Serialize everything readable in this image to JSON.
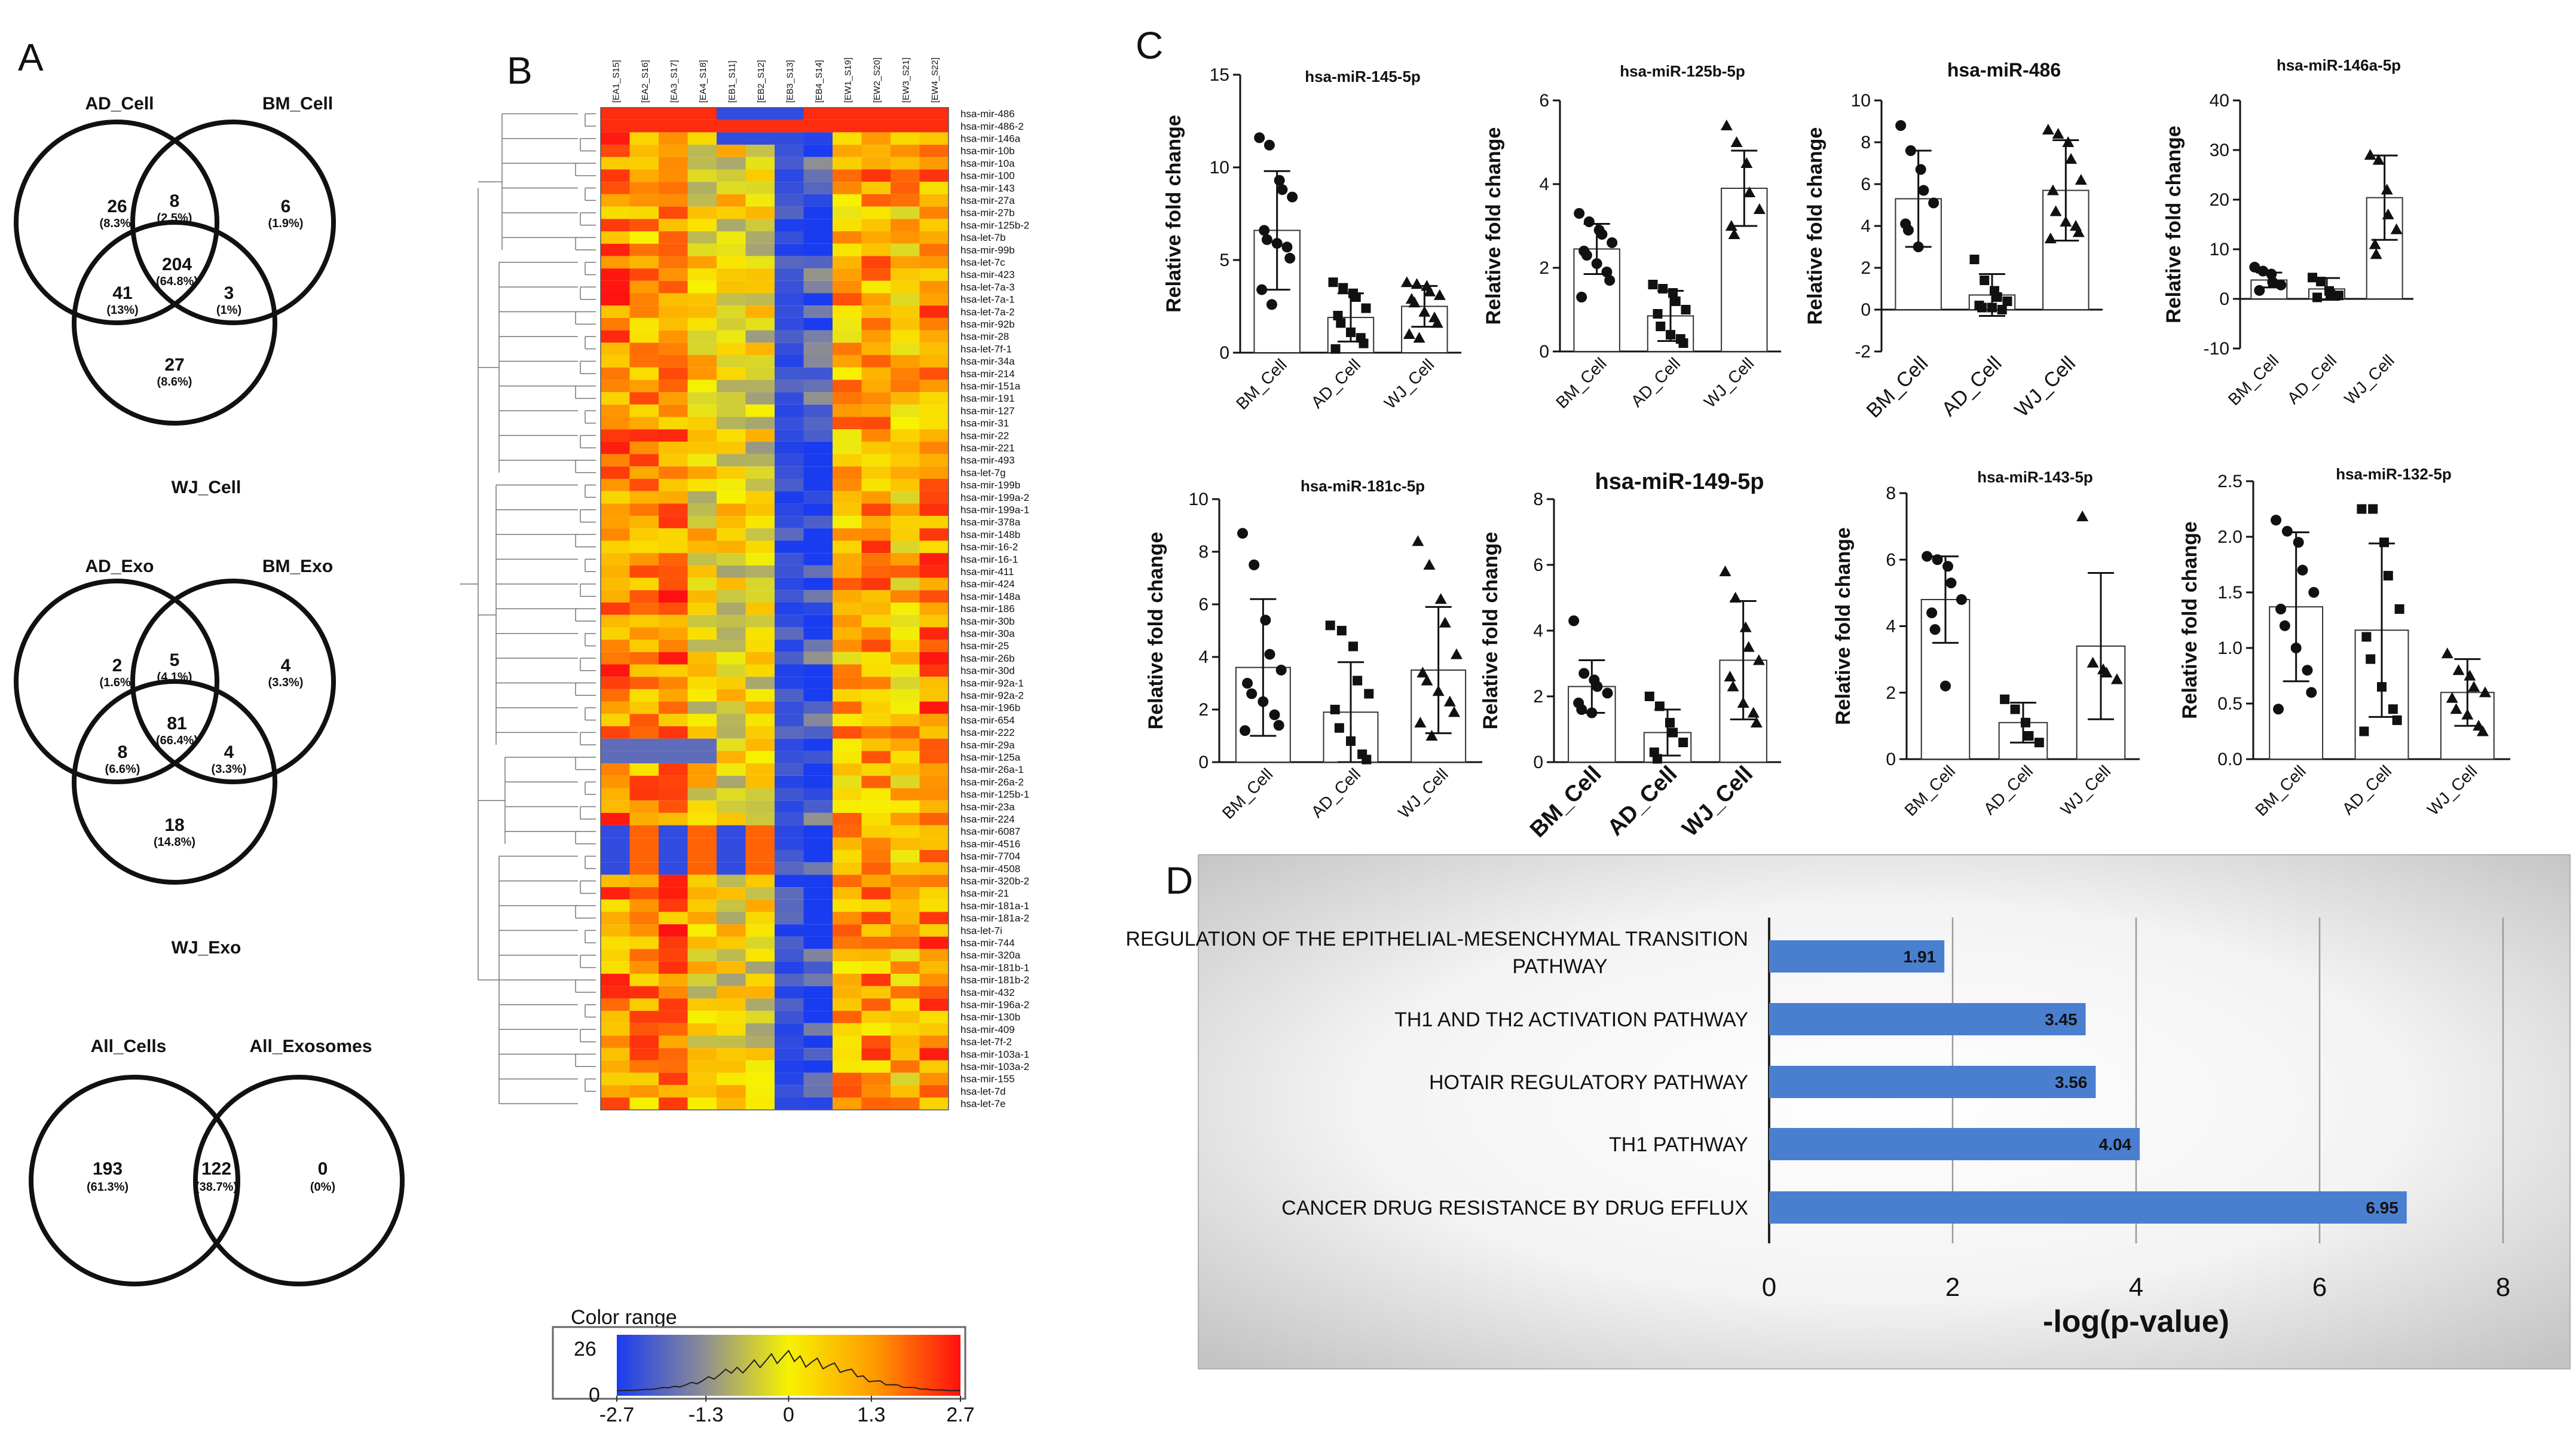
{
  "panel_labels": {
    "A": "A",
    "B": "B",
    "C": "C",
    "D": "D"
  },
  "venn_cell": {
    "labels": {
      "AD": "AD_Cell",
      "BM": "BM_Cell",
      "WJ": "WJ_Cell"
    },
    "regions": [
      {
        "count": "26",
        "pct": "(8.3%)"
      },
      {
        "count": "8",
        "pct": "(2.5%)"
      },
      {
        "count": "6",
        "pct": "(1.9%)"
      },
      {
        "count": "204",
        "pct": "(64.8%)"
      },
      {
        "count": "41",
        "pct": "(13%)"
      },
      {
        "count": "3",
        "pct": "(1%)"
      },
      {
        "count": "27",
        "pct": "(8.6%)"
      }
    ]
  },
  "venn_exo": {
    "labels": {
      "AD": "AD_Exo",
      "BM": "BM_Exo",
      "WJ": "WJ_Exo"
    },
    "regions": [
      {
        "count": "2",
        "pct": "(1.6%)"
      },
      {
        "count": "5",
        "pct": "(4.1%)"
      },
      {
        "count": "4",
        "pct": "(3.3%)"
      },
      {
        "count": "81",
        "pct": "(66.4%)"
      },
      {
        "count": "8",
        "pct": "(6.6%)"
      },
      {
        "count": "4",
        "pct": "(3.3%)"
      },
      {
        "count": "18",
        "pct": "(14.8%)"
      }
    ]
  },
  "venn_all": {
    "labels": {
      "cells": "All_Cells",
      "exo": "All_Exosomes"
    },
    "regions": [
      {
        "count": "193",
        "pct": "(61.3%)"
      },
      {
        "count": "122",
        "pct": "(38.7%)"
      },
      {
        "count": "0",
        "pct": "(0%)"
      }
    ]
  },
  "heatmap": {
    "columns": [
      "[EA1_S15]",
      "[EA2_S16]",
      "[EA3_S17]",
      "[EA4_S18]",
      "[EB1_S11]",
      "[EB2_S12]",
      "[EB3_S13]",
      "[EB4_S14]",
      "[EW1_S19]",
      "[EW2_S20]",
      "[EW3_S21]",
      "[EW4_S22]"
    ],
    "rows": [
      "hsa-mir-486",
      "hsa-mir-486-2",
      "hsa-mir-146a",
      "hsa-mir-10b",
      "hsa-mir-10a",
      "hsa-mir-100",
      "hsa-mir-143",
      "hsa-mir-27a",
      "hsa-mir-27b",
      "hsa-mir-125b-2",
      "hsa-let-7b",
      "hsa-mir-99b",
      "hsa-let-7c",
      "hsa-mir-423",
      "hsa-let-7a-3",
      "hsa-let-7a-1",
      "hsa-let-7a-2",
      "hsa-mir-92b",
      "hsa-mir-28",
      "hsa-let-7f-1",
      "hsa-mir-34a",
      "hsa-mir-214",
      "hsa-mir-151a",
      "hsa-mir-191",
      "hsa-mir-127",
      "hsa-mir-31",
      "hsa-mir-22",
      "hsa-mir-221",
      "hsa-mir-493",
      "hsa-let-7g",
      "hsa-mir-199b",
      "hsa-mir-199a-2",
      "hsa-mir-199a-1",
      "hsa-mir-378a",
      "hsa-mir-148b",
      "hsa-mir-16-2",
      "hsa-mir-16-1",
      "hsa-mir-411",
      "hsa-mir-424",
      "hsa-mir-148a",
      "hsa-mir-186",
      "hsa-mir-30b",
      "hsa-mir-30a",
      "hsa-mir-25",
      "hsa-mir-26b",
      "hsa-mir-30d",
      "hsa-mir-92a-1",
      "hsa-mir-92a-2",
      "hsa-mir-196b",
      "hsa-mir-654",
      "hsa-mir-222",
      "hsa-mir-29a",
      "hsa-mir-125a",
      "hsa-mir-26a-1",
      "hsa-mir-26a-2",
      "hsa-mir-125b-1",
      "hsa-mir-23a",
      "hsa-mir-224",
      "hsa-mir-6087",
      "hsa-mir-4516",
      "hsa-mir-7704",
      "hsa-mir-4508",
      "hsa-mir-320b-2",
      "hsa-mir-21",
      "hsa-mir-181a-1",
      "hsa-mir-181a-2",
      "hsa-let-7i",
      "hsa-mir-744",
      "hsa-mir-320a",
      "hsa-mir-181b-1",
      "hsa-mir-181b-2",
      "hsa-mir-432",
      "hsa-mir-196a-2",
      "hsa-mir-130b",
      "hsa-mir-409",
      "hsa-let-7f-2",
      "hsa-mir-103a-1",
      "hsa-mir-103a-2",
      "hsa-mir-155",
      "hsa-let-7d",
      "hsa-let-7e"
    ],
    "legend_title": "Color range",
    "legend_count": "26",
    "legend_zero": "0",
    "legend_ticks": [
      "-2.7",
      "-1.3",
      "0",
      "1.3",
      "2.7"
    ],
    "colors": [
      "#1a3cf0",
      "#8c8c96",
      "#f7f200",
      "#ff9a00",
      "#ff1010"
    ]
  },
  "chart_data": [
    {
      "type": "bar",
      "panel": "C",
      "title": "hsa-miR-145-5p",
      "categories": [
        "BM_Cell",
        "AD_Cell",
        "WJ_Cell"
      ],
      "values": [
        6.6,
        1.9,
        2.5
      ],
      "sd": [
        3.2,
        1.3,
        1.1
      ],
      "ylabel": "Relative fold change",
      "ylim": [
        0,
        15
      ],
      "yticks": [
        "0",
        "5",
        "10",
        "15"
      ],
      "markers": [
        "circle",
        "square",
        "triangle"
      ],
      "points": [
        [
          11.6,
          11.2,
          9.3,
          8.8,
          8.4,
          6.6,
          6.1,
          5.9,
          5.7,
          5.1,
          3.4,
          2.6
        ],
        [
          3.8,
          3.5,
          3.2,
          3.0,
          2.4,
          2.0,
          1.6,
          1.1,
          0.8,
          0.5,
          0.2
        ],
        [
          3.8,
          3.7,
          3.6,
          3.3,
          3.1,
          2.9,
          2.7,
          2.2,
          1.9,
          1.6,
          1.0,
          0.8
        ]
      ]
    },
    {
      "type": "bar",
      "panel": "C",
      "title": "hsa-miR-125b-5p",
      "categories": [
        "BM_Cell",
        "AD_Cell",
        "WJ_Cell"
      ],
      "values": [
        2.45,
        0.85,
        3.9
      ],
      "sd": [
        0.6,
        0.6,
        0.9
      ],
      "ylabel": "Relative fold change",
      "ylim": [
        0,
        6
      ],
      "yticks": [
        "0",
        "2",
        "4",
        "6"
      ],
      "markers": [
        "circle",
        "square",
        "triangle"
      ],
      "points": [
        [
          3.3,
          3.1,
          2.9,
          2.8,
          2.6,
          2.4,
          2.3,
          2.1,
          1.9,
          1.7,
          1.3
        ],
        [
          1.6,
          1.5,
          1.4,
          1.2,
          1.0,
          0.9,
          0.6,
          0.4,
          0.3,
          0.2
        ],
        [
          5.4,
          5.0,
          4.5,
          3.8,
          3.4,
          3.0,
          2.8
        ]
      ]
    },
    {
      "type": "bar",
      "panel": "C",
      "title": "hsa-miR-486",
      "categories": [
        "BM_Cell",
        "AD_Cell",
        "WJ_Cell"
      ],
      "values": [
        5.3,
        0.7,
        5.7
      ],
      "sd": [
        2.3,
        1.0,
        2.4
      ],
      "ylabel": "Relative fold change",
      "ylim": [
        -2,
        10
      ],
      "yticks": [
        "-2",
        "0",
        "2",
        "4",
        "6",
        "8",
        "10"
      ],
      "markers": [
        "circle",
        "square",
        "triangle"
      ],
      "points": [
        [
          8.8,
          7.6,
          6.7,
          5.7,
          5.1,
          4.1,
          3.8,
          3.0
        ],
        [
          2.4,
          1.4,
          0.9,
          0.6,
          0.4,
          0.2,
          0.1,
          0.1,
          0.0
        ],
        [
          8.6,
          8.4,
          8.0,
          7.2,
          6.2,
          5.7,
          4.7,
          4.2,
          4.0,
          3.7,
          3.4
        ]
      ]
    },
    {
      "type": "bar",
      "panel": "C",
      "title": "hsa-miR-146a-5p",
      "categories": [
        "BM_Cell",
        "AD_Cell",
        "WJ_Cell"
      ],
      "values": [
        3.8,
        2.0,
        20.4
      ],
      "sd": [
        1.5,
        2.2,
        8.5
      ],
      "ylabel": "Relative fold change",
      "ylim": [
        -10,
        40
      ],
      "yticks": [
        "-10",
        "0",
        "10",
        "20",
        "30",
        "40"
      ],
      "markers": [
        "circle",
        "square",
        "triangle"
      ],
      "points": [
        [
          6.4,
          5.6,
          5.0,
          3.4,
          2.8,
          1.7
        ],
        [
          4.3,
          3.5,
          1.6,
          1.0,
          0.7,
          0.3
        ],
        [
          29,
          28,
          22,
          17,
          14,
          11,
          9
        ]
      ]
    },
    {
      "type": "bar",
      "panel": "C",
      "title": "hsa-miR-181c-5p",
      "categories": [
        "BM_Cell",
        "AD_Cell",
        "WJ_Cell"
      ],
      "values": [
        3.6,
        1.9,
        3.5
      ],
      "sd": [
        2.6,
        1.9,
        2.4
      ],
      "ylabel": "Relative fold change",
      "ylim": [
        0,
        10
      ],
      "yticks": [
        "0",
        "2",
        "4",
        "6",
        "8",
        "10"
      ],
      "markers": [
        "circle",
        "square",
        "triangle"
      ],
      "points": [
        [
          8.7,
          7.5,
          5.4,
          4.1,
          3.5,
          3.0,
          2.6,
          2.3,
          1.8,
          1.4,
          1.2
        ],
        [
          5.2,
          5.0,
          4.4,
          3.1,
          2.6,
          2.0,
          1.3,
          0.8,
          0.3,
          0.1
        ],
        [
          8.4,
          7.5,
          6.2,
          5.3,
          4.1,
          3.4,
          3.1,
          2.7,
          2.3,
          1.9,
          1.5,
          1.0
        ]
      ]
    },
    {
      "type": "bar",
      "panel": "C",
      "title": "hsa-miR-149-5p",
      "categories": [
        "BM_Cell",
        "AD_Cell",
        "WJ_Cell"
      ],
      "values": [
        2.3,
        0.9,
        3.1
      ],
      "sd": [
        0.8,
        0.7,
        1.8
      ],
      "ylabel": "Relative fold change",
      "ylim": [
        0,
        8
      ],
      "yticks": [
        "0",
        "2",
        "4",
        "6",
        "8"
      ],
      "markers": [
        "circle",
        "square",
        "triangle"
      ],
      "points": [
        [
          4.3,
          2.7,
          2.5,
          2.3,
          2.1,
          1.8,
          1.6,
          1.5
        ],
        [
          2.0,
          1.7,
          1.2,
          0.9,
          0.6,
          0.3,
          0.1
        ],
        [
          5.8,
          5.0,
          4.1,
          3.5,
          3.1,
          2.6,
          2.3,
          1.8,
          1.5,
          1.2
        ]
      ]
    },
    {
      "type": "bar",
      "panel": "C",
      "title": "hsa-miR-143-5p",
      "categories": [
        "BM_Cell",
        "AD_Cell",
        "WJ_Cell"
      ],
      "values": [
        4.8,
        1.1,
        3.4
      ],
      "sd": [
        1.3,
        0.6,
        2.2
      ],
      "ylabel": "Relative fold change",
      "ylim": [
        0,
        8
      ],
      "yticks": [
        "0",
        "2",
        "4",
        "6",
        "8"
      ],
      "markers": [
        "circle",
        "square",
        "triangle"
      ],
      "points": [
        [
          6.1,
          6.0,
          5.8,
          5.3,
          4.8,
          4.4,
          3.9,
          2.2
        ],
        [
          1.8,
          1.5,
          1.1,
          0.7,
          0.5
        ],
        [
          7.3,
          2.9,
          2.7,
          2.6,
          2.4
        ]
      ]
    },
    {
      "type": "bar",
      "panel": "C",
      "title": "hsa-miR-132-5p",
      "categories": [
        "BM_Cell",
        "AD_Cell",
        "WJ_Cell"
      ],
      "values": [
        1.37,
        1.16,
        0.6
      ],
      "sd": [
        0.67,
        0.78,
        0.3
      ],
      "ylabel": "Relative fold change",
      "ylim": [
        0,
        2.5
      ],
      "yticks": [
        "0.0",
        "0.5",
        "1.0",
        "1.5",
        "2.0",
        "2.5"
      ],
      "markers": [
        "circle",
        "square",
        "triangle"
      ],
      "points": [
        [
          2.15,
          2.05,
          1.95,
          1.7,
          1.5,
          1.35,
          1.2,
          1.0,
          0.8,
          0.6,
          0.45
        ],
        [
          2.25,
          2.25,
          1.95,
          1.65,
          1.35,
          1.1,
          0.9,
          0.65,
          0.45,
          0.35,
          0.25
        ],
        [
          0.95,
          0.8,
          0.75,
          0.65,
          0.6,
          0.55,
          0.45,
          0.4,
          0.3,
          0.25
        ]
      ]
    },
    {
      "type": "bar",
      "orientation": "horizontal",
      "panel": "D",
      "categories": [
        "REGULATION OF THE EPITHELIAL-MESENCHYMAL TRANSITION PATHWAY",
        "TH1 AND TH2 ACTIVATION PATHWAY",
        "HOTAIR REGULATORY PATHWAY",
        "TH1 PATHWAY",
        "CANCER DRUG RESISTANCE BY DRUG EFFLUX"
      ],
      "values": [
        1.91,
        3.45,
        3.56,
        4.04,
        6.95
      ],
      "value_labels": [
        "1.91",
        "3.45",
        "3.56",
        "4.04",
        "6.95"
      ],
      "xlabel": "-log(p-value)",
      "xlim": [
        0,
        8
      ],
      "xticks": [
        "0",
        "2",
        "4",
        "6",
        "8"
      ],
      "color": "#4a7fd0"
    }
  ]
}
